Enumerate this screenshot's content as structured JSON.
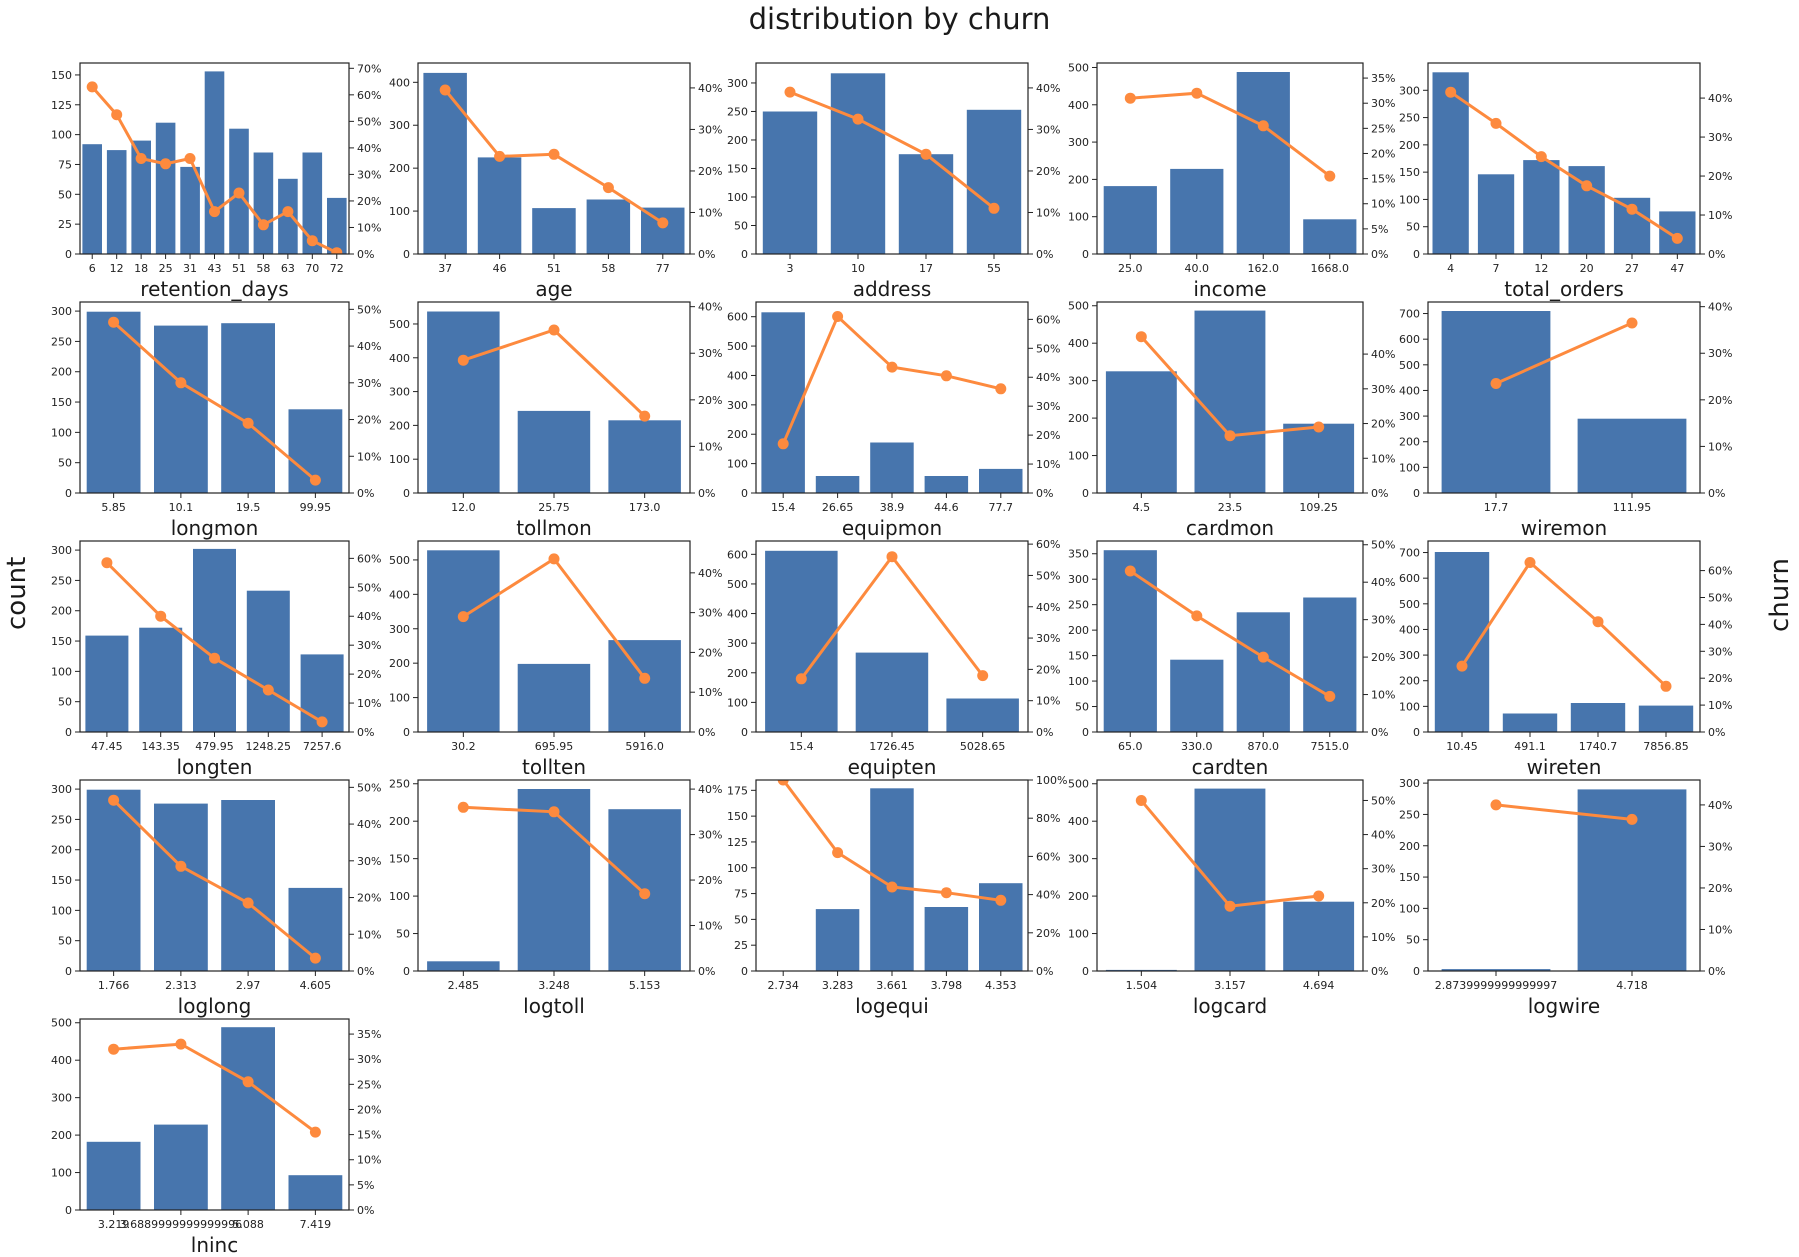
{
  "figure": {
    "title": "distribution by churn",
    "left_ylabel": "count",
    "right_ylabel": "churn"
  },
  "colors": {
    "bar": "#4775ad",
    "line": "#fd8a3e",
    "axis": "#222222"
  },
  "chart_data": [
    {
      "type": "bar",
      "title": "",
      "xlabel": "retention_days",
      "categories": [
        "6",
        "12",
        "18",
        "25",
        "31",
        "43",
        "51",
        "58",
        "63",
        "70",
        "72"
      ],
      "series": [
        {
          "values": [
            92,
            87,
            95,
            110,
            73,
            153,
            105,
            85,
            63,
            85,
            47
          ]
        },
        {
          "values": [
            0.63,
            0.525,
            0.36,
            0.34,
            0.36,
            0.16,
            0.23,
            0.11,
            0.16,
            0.05,
            0.005
          ]
        }
      ],
      "ylim": [
        0,
        160
      ],
      "yticks": [
        0,
        25,
        50,
        75,
        100,
        125,
        150
      ],
      "y2lim": [
        0,
        0.72
      ],
      "y2ticks": [
        0,
        0.1,
        0.2,
        0.3,
        0.4,
        0.5,
        0.6,
        0.7
      ]
    },
    {
      "type": "bar",
      "title": "",
      "xlabel": "age",
      "categories": [
        "37",
        "46",
        "51",
        "58",
        "77"
      ],
      "series": [
        {
          "values": [
            422,
            225,
            107,
            127,
            108
          ]
        },
        {
          "values": [
            0.395,
            0.235,
            0.24,
            0.16,
            0.075
          ]
        }
      ],
      "ylim": [
        0,
        445
      ],
      "yticks": [
        0,
        100,
        200,
        300,
        400
      ],
      "y2lim": [
        0,
        0.46
      ],
      "y2ticks": [
        0,
        0.1,
        0.2,
        0.3,
        0.4
      ]
    },
    {
      "type": "bar",
      "title": "",
      "xlabel": "address",
      "categories": [
        "3",
        "10",
        "17",
        "55"
      ],
      "series": [
        {
          "values": [
            250,
            317,
            175,
            253
          ]
        },
        {
          "values": [
            0.39,
            0.325,
            0.24,
            0.11
          ]
        }
      ],
      "ylim": [
        0,
        335
      ],
      "yticks": [
        0,
        50,
        100,
        150,
        200,
        250,
        300
      ],
      "y2lim": [
        0,
        0.46
      ],
      "y2ticks": [
        0,
        0.1,
        0.2,
        0.3,
        0.4
      ]
    },
    {
      "type": "bar",
      "title": "",
      "xlabel": "income",
      "categories": [
        "25.0",
        "40.0",
        "162.0",
        "1668.0"
      ],
      "series": [
        {
          "values": [
            182,
            228,
            488,
            93
          ]
        },
        {
          "values": [
            0.31,
            0.32,
            0.255,
            0.155
          ]
        }
      ],
      "ylim": [
        0,
        512
      ],
      "yticks": [
        0,
        100,
        200,
        300,
        400,
        500
      ],
      "y2lim": [
        0,
        0.38
      ],
      "y2ticks": [
        0,
        0.05,
        0.1,
        0.15,
        0.2,
        0.25,
        0.3,
        0.35
      ]
    },
    {
      "type": "bar",
      "title": "",
      "xlabel": "total_orders",
      "categories": [
        "4",
        "7",
        "12",
        "20",
        "27",
        "47"
      ],
      "series": [
        {
          "values": [
            333,
            146,
            172,
            161,
            103,
            78
          ]
        },
        {
          "values": [
            0.415,
            0.335,
            0.25,
            0.175,
            0.115,
            0.04
          ]
        }
      ],
      "ylim": [
        0,
        350
      ],
      "yticks": [
        0,
        50,
        100,
        150,
        200,
        250,
        300
      ],
      "y2lim": [
        0,
        0.49
      ],
      "y2ticks": [
        0,
        0.1,
        0.2,
        0.3,
        0.4
      ]
    },
    {
      "type": "bar",
      "title": "",
      "xlabel": "longmon",
      "categories": [
        "5.85",
        "10.1",
        "19.5",
        "99.95"
      ],
      "series": [
        {
          "values": [
            299,
            276,
            280,
            138
          ]
        },
        {
          "values": [
            0.465,
            0.3,
            0.19,
            0.035
          ]
        }
      ],
      "ylim": [
        0,
        315
      ],
      "yticks": [
        0,
        50,
        100,
        150,
        200,
        250,
        300
      ],
      "y2lim": [
        0,
        0.52
      ],
      "y2ticks": [
        0,
        0.1,
        0.2,
        0.3,
        0.4,
        0.5
      ]
    },
    {
      "type": "bar",
      "title": "",
      "xlabel": "tollmon",
      "categories": [
        "12.0",
        "25.75",
        "173.0"
      ],
      "series": [
        {
          "values": [
            537,
            243,
            215
          ]
        },
        {
          "values": [
            0.285,
            0.35,
            0.165
          ]
        }
      ],
      "ylim": [
        0,
        565
      ],
      "yticks": [
        0,
        100,
        200,
        300,
        400,
        500
      ],
      "y2lim": [
        0,
        0.41
      ],
      "y2ticks": [
        0,
        0.1,
        0.2,
        0.3,
        0.4
      ]
    },
    {
      "type": "bar",
      "title": "",
      "xlabel": "equipmon",
      "categories": [
        "15.4",
        "26.65",
        "38.9",
        "44.6",
        "77.7"
      ],
      "series": [
        {
          "values": [
            615,
            58,
            172,
            58,
            82
          ]
        },
        {
          "values": [
            0.17,
            0.61,
            0.435,
            0.405,
            0.36
          ]
        }
      ],
      "ylim": [
        0,
        650
      ],
      "yticks": [
        0,
        100,
        200,
        300,
        400,
        500,
        600
      ],
      "y2lim": [
        0,
        0.66
      ],
      "y2ticks": [
        0,
        0.1,
        0.2,
        0.3,
        0.4,
        0.5,
        0.6
      ]
    },
    {
      "type": "bar",
      "title": "",
      "xlabel": "cardmon",
      "categories": [
        "4.5",
        "23.5",
        "109.25"
      ],
      "series": [
        {
          "values": [
            325,
            487,
            185
          ]
        },
        {
          "values": [
            0.45,
            0.165,
            0.19
          ]
        }
      ],
      "ylim": [
        0,
        510
      ],
      "yticks": [
        0,
        100,
        200,
        300,
        400,
        500
      ],
      "y2lim": [
        0,
        0.55
      ],
      "y2ticks": [
        0,
        0.1,
        0.2,
        0.3,
        0.4
      ]
    },
    {
      "type": "bar",
      "title": "",
      "xlabel": "wiremon",
      "categories": [
        "17.7",
        "111.95"
      ],
      "series": [
        {
          "values": [
            710,
            290
          ]
        },
        {
          "values": [
            0.235,
            0.365
          ]
        }
      ],
      "ylim": [
        0,
        745
      ],
      "yticks": [
        0,
        100,
        200,
        300,
        400,
        500,
        600,
        700
      ],
      "y2lim": [
        0,
        0.41
      ],
      "y2ticks": [
        0,
        0.1,
        0.2,
        0.3,
        0.4
      ]
    },
    {
      "type": "bar",
      "title": "",
      "xlabel": "longten",
      "categories": [
        "47.45",
        "143.35",
        "479.95",
        "1248.25",
        "7257.6"
      ],
      "series": [
        {
          "values": [
            159,
            172,
            302,
            233,
            128
          ]
        },
        {
          "values": [
            0.585,
            0.4,
            0.255,
            0.145,
            0.035
          ]
        }
      ],
      "ylim": [
        0,
        315
      ],
      "yticks": [
        0,
        50,
        100,
        150,
        200,
        250,
        300
      ],
      "y2lim": [
        0,
        0.66
      ],
      "y2ticks": [
        0,
        0.1,
        0.2,
        0.3,
        0.4,
        0.5,
        0.6
      ]
    },
    {
      "type": "bar",
      "title": "",
      "xlabel": "tollten",
      "categories": [
        "30.2",
        "695.95",
        "5916.0"
      ],
      "series": [
        {
          "values": [
            528,
            198,
            267
          ]
        },
        {
          "values": [
            0.29,
            0.435,
            0.135
          ]
        }
      ],
      "ylim": [
        0,
        555
      ],
      "yticks": [
        0,
        100,
        200,
        300,
        400,
        500
      ],
      "y2lim": [
        0,
        0.48
      ],
      "y2ticks": [
        0,
        0.1,
        0.2,
        0.3,
        0.4
      ]
    },
    {
      "type": "bar",
      "title": "",
      "xlabel": "equipten",
      "categories": [
        "15.4",
        "1726.45",
        "5028.65"
      ],
      "series": [
        {
          "values": [
            612,
            268,
            113
          ]
        },
        {
          "values": [
            0.17,
            0.56,
            0.18
          ]
        }
      ],
      "ylim": [
        0,
        645
      ],
      "yticks": [
        0,
        100,
        200,
        300,
        400,
        500,
        600
      ],
      "y2lim": [
        0,
        0.61
      ],
      "y2ticks": [
        0,
        0.1,
        0.2,
        0.3,
        0.4,
        0.5,
        0.6
      ]
    },
    {
      "type": "bar",
      "title": "",
      "xlabel": "cardten",
      "categories": [
        "65.0",
        "330.0",
        "870.0",
        "7515.0"
      ],
      "series": [
        {
          "values": [
            357,
            142,
            235,
            264
          ]
        },
        {
          "values": [
            0.43,
            0.31,
            0.2,
            0.095
          ]
        }
      ],
      "ylim": [
        0,
        375
      ],
      "yticks": [
        0,
        50,
        100,
        150,
        200,
        250,
        300,
        350
      ],
      "y2lim": [
        0,
        0.51
      ],
      "y2ticks": [
        0,
        0.1,
        0.2,
        0.3,
        0.4,
        0.5
      ]
    },
    {
      "type": "bar",
      "title": "",
      "xlabel": "wireten",
      "categories": [
        "10.45",
        "491.1",
        "1740.7",
        "7856.85"
      ],
      "series": [
        {
          "values": [
            702,
            72,
            113,
            103
          ]
        },
        {
          "values": [
            0.245,
            0.63,
            0.41,
            0.17
          ]
        }
      ],
      "ylim": [
        0,
        745
      ],
      "yticks": [
        0,
        100,
        200,
        300,
        400,
        500,
        600,
        700
      ],
      "y2lim": [
        0,
        0.71
      ],
      "y2ticks": [
        0,
        0.1,
        0.2,
        0.3,
        0.4,
        0.5,
        0.6
      ]
    },
    {
      "type": "bar",
      "title": "",
      "xlabel": "loglong",
      "categories": [
        "1.766",
        "2.313",
        "2.97",
        "4.605"
      ],
      "series": [
        {
          "values": [
            299,
            276,
            282,
            137
          ]
        },
        {
          "values": [
            0.465,
            0.285,
            0.185,
            0.035
          ]
        }
      ],
      "ylim": [
        0,
        315
      ],
      "yticks": [
        0,
        50,
        100,
        150,
        200,
        250,
        300
      ],
      "y2lim": [
        0,
        0.52
      ],
      "y2ticks": [
        0,
        0.1,
        0.2,
        0.3,
        0.4,
        0.5
      ]
    },
    {
      "type": "bar",
      "title": "",
      "xlabel": "logtoll",
      "categories": [
        "2.485",
        "3.248",
        "5.153"
      ],
      "series": [
        {
          "values": [
            13,
            243,
            216
          ]
        },
        {
          "values": [
            0.36,
            0.35,
            0.17
          ]
        }
      ],
      "ylim": [
        0,
        255
      ],
      "yticks": [
        0,
        50,
        100,
        150,
        200,
        250
      ],
      "y2lim": [
        0,
        0.42
      ],
      "y2ticks": [
        0,
        0.1,
        0.2,
        0.3,
        0.4
      ]
    },
    {
      "type": "bar",
      "title": "",
      "xlabel": "logequi",
      "categories": [
        "2.734",
        "3.283",
        "3.661",
        "3.798",
        "4.353"
      ],
      "series": [
        {
          "values": [
            0,
            60,
            177,
            62,
            85
          ]
        },
        {
          "values": [
            1.0,
            0.62,
            0.44,
            0.41,
            0.37
          ]
        }
      ],
      "ylim": [
        0,
        185
      ],
      "yticks": [
        0,
        25,
        50,
        75,
        100,
        125,
        150,
        175
      ],
      "y2lim": [
        0,
        1.0
      ],
      "y2ticks": [
        0,
        0.2,
        0.4,
        0.6,
        0.8,
        1.0
      ]
    },
    {
      "type": "bar",
      "title": "",
      "xlabel": "logcard",
      "categories": [
        "1.504",
        "3.157",
        "4.694"
      ],
      "series": [
        {
          "values": [
            3,
            487,
            185
          ]
        },
        {
          "values": [
            0.5,
            0.19,
            0.22
          ]
        }
      ],
      "ylim": [
        0,
        510
      ],
      "yticks": [
        0,
        100,
        200,
        300,
        400,
        500
      ],
      "y2lim": [
        0,
        0.56
      ],
      "y2ticks": [
        0,
        0.1,
        0.2,
        0.3,
        0.4,
        0.5
      ]
    },
    {
      "type": "bar",
      "title": "",
      "xlabel": "logwire",
      "categories": [
        "2.8739999999999997",
        "4.718"
      ],
      "series": [
        {
          "values": [
            3,
            290
          ]
        },
        {
          "values": [
            0.4,
            0.365
          ]
        }
      ],
      "ylim": [
        0,
        305
      ],
      "yticks": [
        0,
        50,
        100,
        150,
        200,
        250,
        300
      ],
      "y2lim": [
        0,
        0.46
      ],
      "y2ticks": [
        0,
        0.1,
        0.2,
        0.3,
        0.4
      ]
    },
    {
      "type": "bar",
      "title": "",
      "xlabel": "lninc",
      "categories": [
        "3.219",
        "3.6889999999999996",
        "5.088",
        "7.419"
      ],
      "series": [
        {
          "values": [
            182,
            228,
            488,
            93
          ]
        },
        {
          "values": [
            0.32,
            0.33,
            0.255,
            0.155
          ]
        }
      ],
      "ylim": [
        0,
        510
      ],
      "yticks": [
        0,
        100,
        200,
        300,
        400,
        500
      ],
      "y2lim": [
        0,
        0.38
      ],
      "y2ticks": [
        0,
        0.05,
        0.1,
        0.15,
        0.2,
        0.25,
        0.3,
        0.35
      ]
    }
  ]
}
